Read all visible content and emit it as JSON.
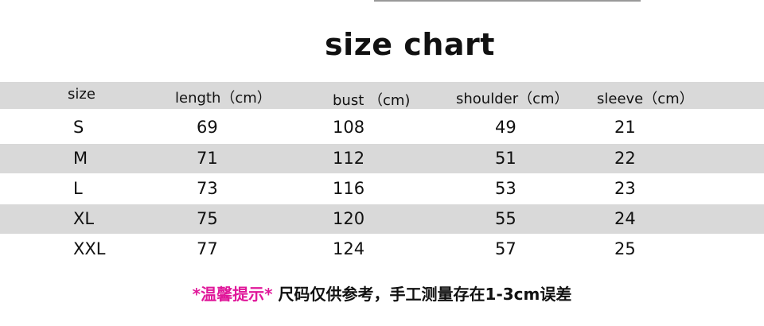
{
  "title": "size chart",
  "headers": [
    "size",
    "length（cm）",
    "bust （cm)",
    "shoulder（cm）",
    "sleeve（cm）"
  ],
  "rows": [
    [
      "S",
      "69",
      "108",
      "49",
      "21"
    ],
    [
      "M",
      "71",
      "112",
      "51",
      "22"
    ],
    [
      "L",
      "73",
      "116",
      "53",
      "23"
    ],
    [
      "XL",
      "75",
      "120",
      "55",
      "24"
    ],
    [
      "XXL",
      "77",
      "124",
      "57",
      "25"
    ]
  ],
  "note": {
    "highlight": "*温馨提示*",
    "text": " 尺码仅供参考，手工测量存在1-3cm误差",
    "highlight_color": "#e0189a"
  },
  "band_color": "#d9d9d9"
}
